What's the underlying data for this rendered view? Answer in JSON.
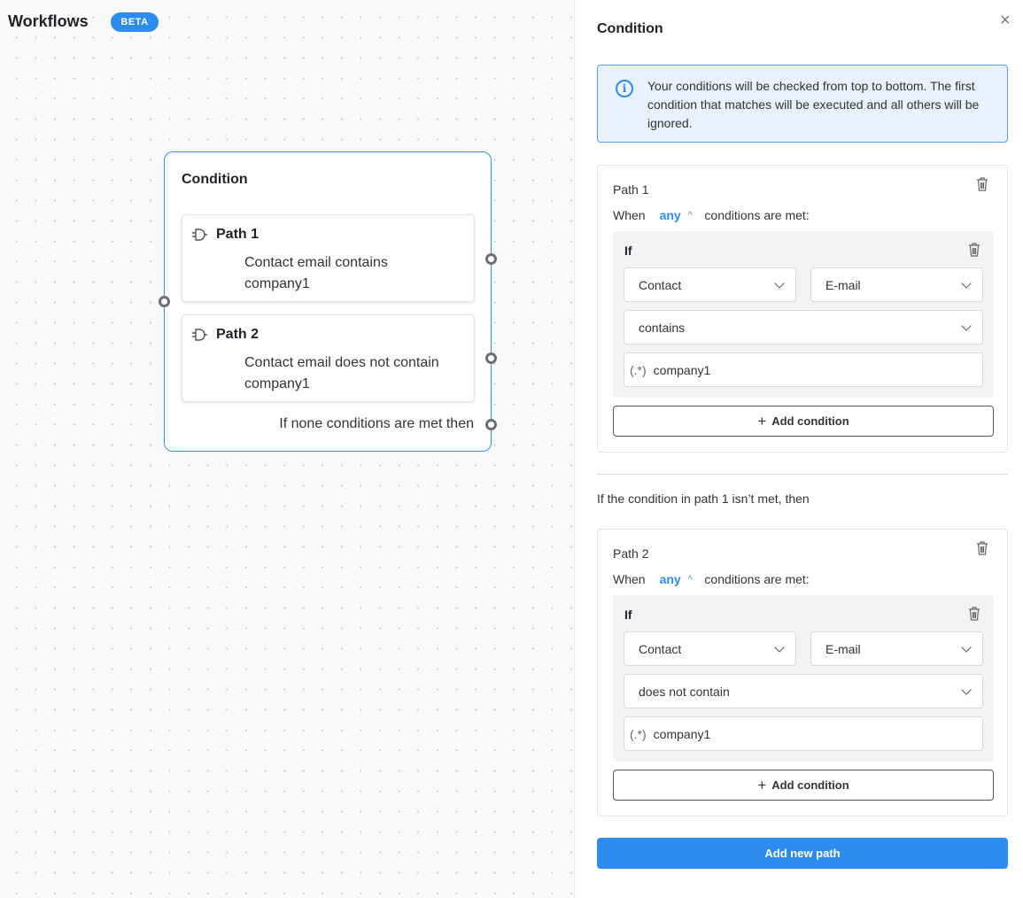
{
  "app": {
    "title": "Workflows",
    "badge": "BETA"
  },
  "node": {
    "title": "Condition",
    "paths": [
      {
        "title": "Path 1",
        "desc": "Contact email contains company1"
      },
      {
        "title": "Path 2",
        "desc": "Contact email does not contain company1"
      }
    ],
    "fallback": "If none conditions are met then"
  },
  "panel": {
    "title": "Condition",
    "close_icon": "×",
    "info": "Your conditions will be checked from top to bottom. The first condition that matches will be executed and all others will be ignored.",
    "paths": [
      {
        "name": "Path 1",
        "when": "When",
        "any": "any",
        "met": "conditions are met:",
        "if": "If",
        "object": "Contact",
        "field": "E-mail",
        "operator": "contains",
        "value": "company1",
        "regex": "(.*)",
        "add_condition": "Add condition"
      },
      {
        "name": "Path 2",
        "when": "When",
        "any": "any",
        "met": "conditions are met:",
        "if": "If",
        "object": "Contact",
        "field": "E-mail",
        "operator": "does not contain",
        "value": "company1",
        "regex": "(.*)",
        "add_condition": "Add condition"
      }
    ],
    "between": "If the condition in path 1 isn’t met, then",
    "add_path": "Add new path"
  },
  "colors": {
    "accent": "#2d8cf0",
    "info_bg": "#e8f2fd"
  }
}
